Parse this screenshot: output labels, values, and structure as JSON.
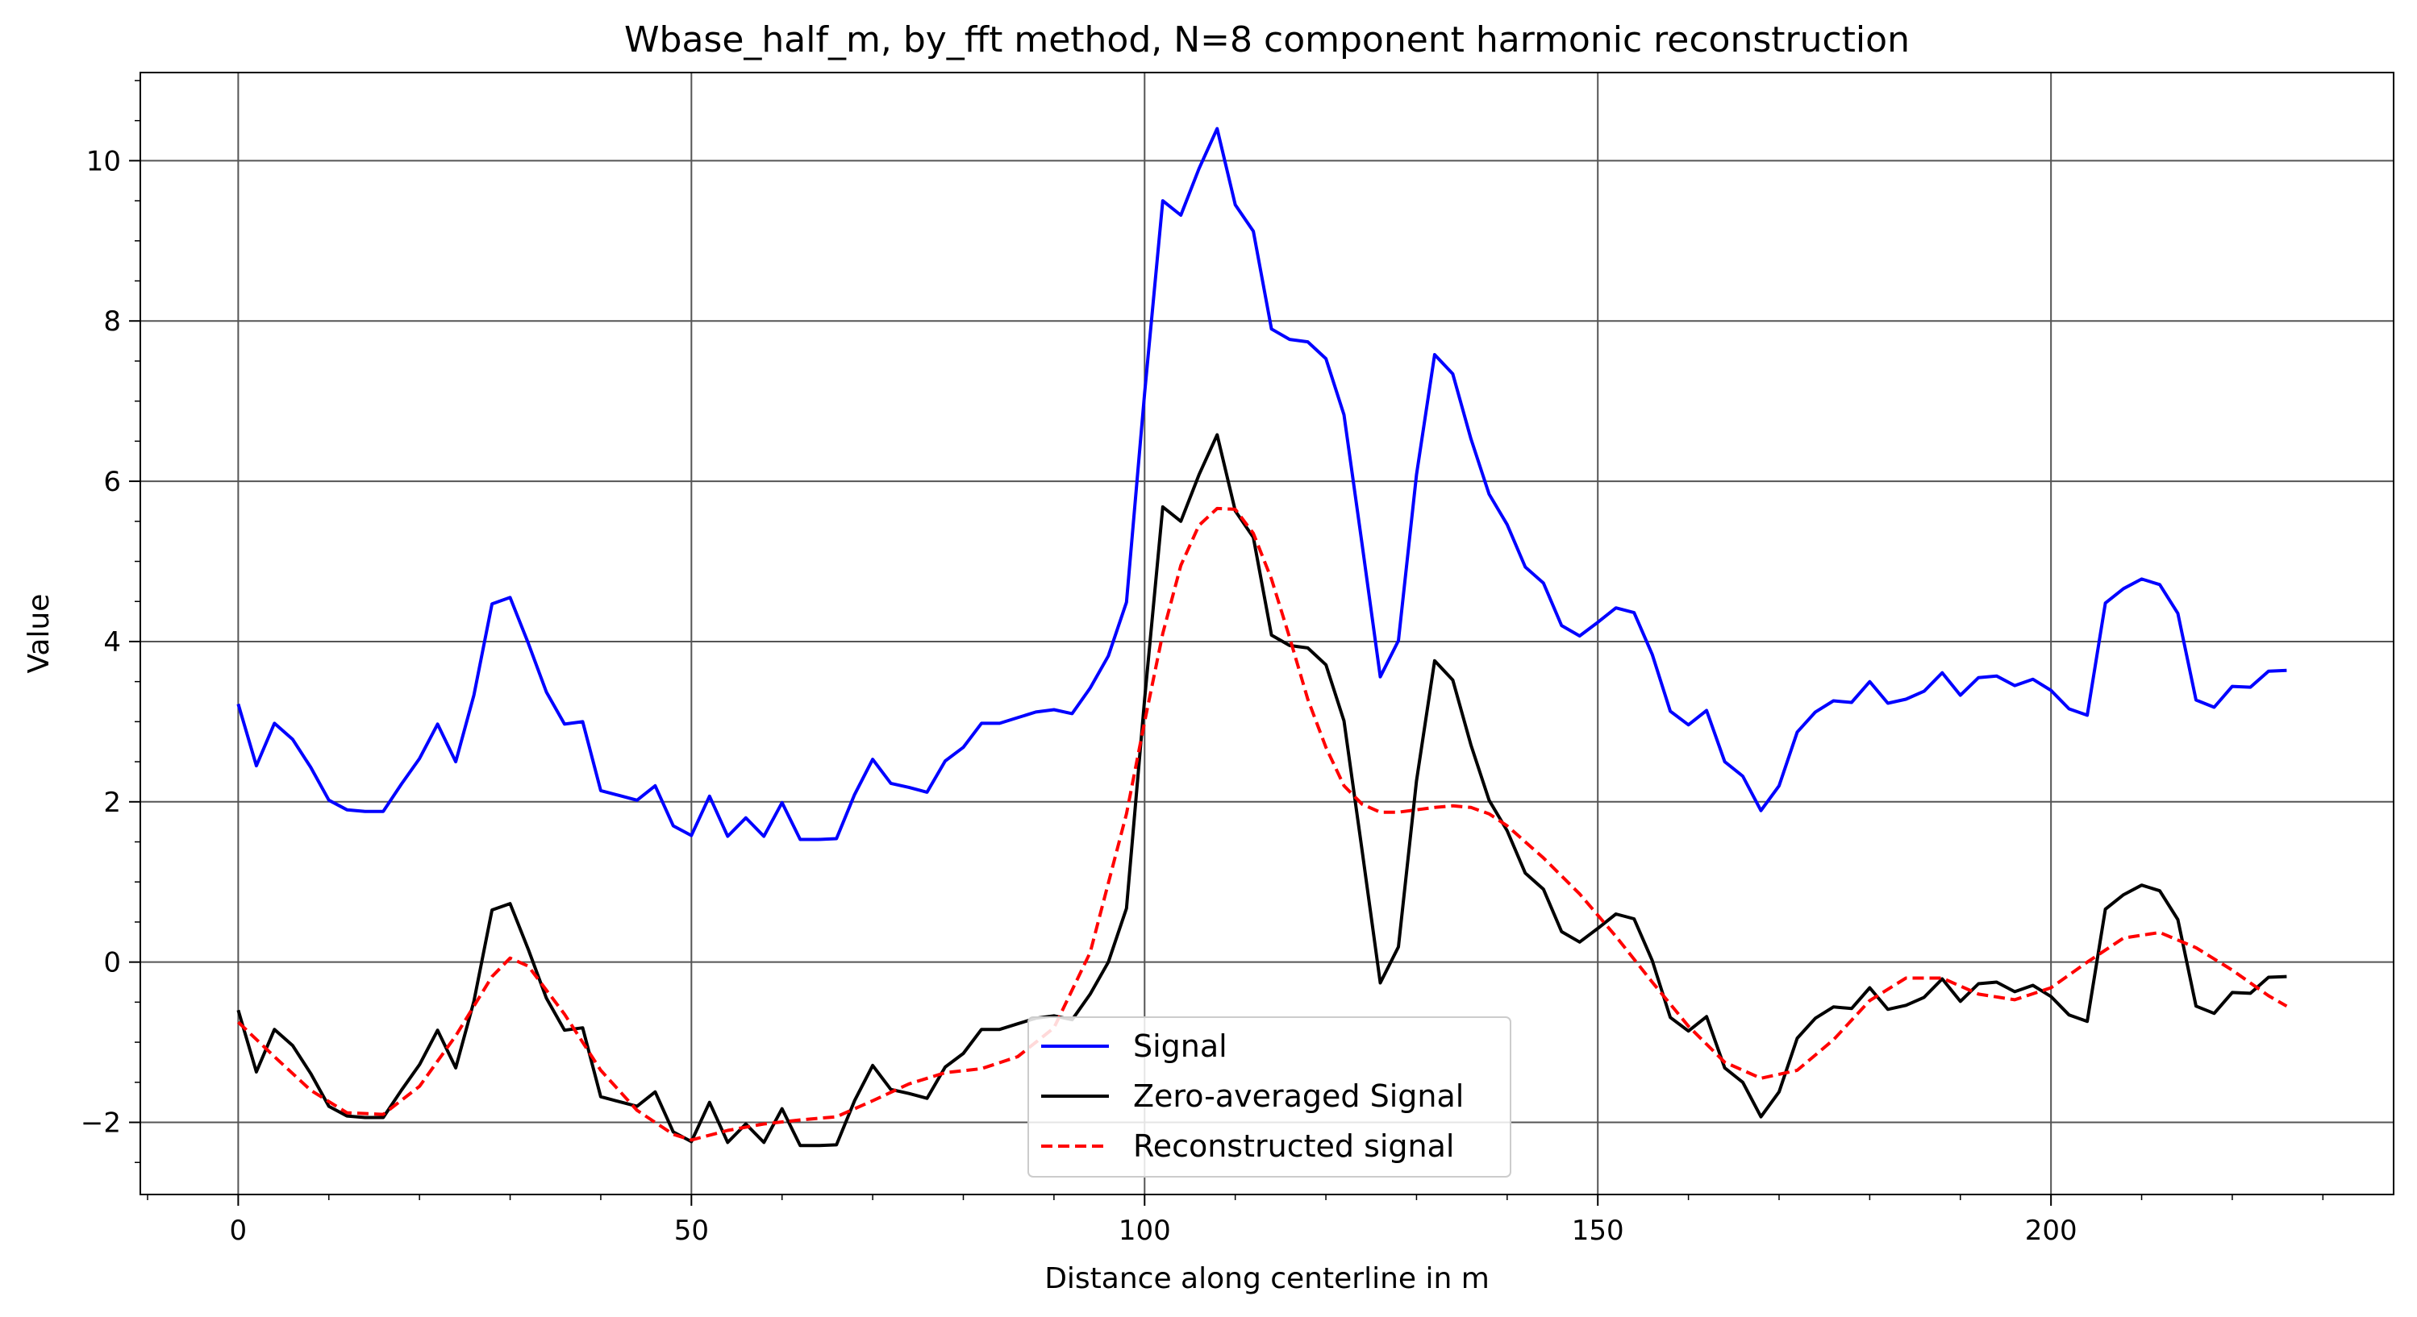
{
  "chart_data": {
    "type": "line",
    "title": "Wbase_half_m, by_fft method, N=8 component harmonic reconstruction",
    "xlabel": "Distance along centerline in m",
    "ylabel": "Value",
    "xlim": [
      -10.8,
      237.8
    ],
    "ylim": [
      -2.9,
      11.1
    ],
    "xticks": [
      0,
      50,
      100,
      150,
      200
    ],
    "yticks": [
      -2,
      0,
      2,
      4,
      6,
      8,
      10
    ],
    "xtick_labels": [
      "0",
      "50",
      "100",
      "150",
      "200"
    ],
    "ytick_labels": [
      "−2",
      "0",
      "2",
      "4",
      "6",
      "8",
      "10"
    ],
    "grid": true,
    "legend_position": "lower-center",
    "series": [
      {
        "name": "Signal",
        "color": "#0000ff",
        "style": "solid",
        "x": [
          0,
          2,
          4,
          6,
          8,
          10,
          12,
          14,
          16,
          18,
          20,
          22,
          24,
          26,
          28,
          30,
          32,
          34,
          36,
          38,
          40,
          42,
          44,
          46,
          48,
          50,
          52,
          54,
          56,
          58,
          60,
          62,
          64,
          66,
          68,
          70,
          72,
          74,
          76,
          78,
          80,
          82,
          84,
          86,
          88,
          90,
          92,
          94,
          96,
          98,
          100,
          102,
          104,
          106,
          108,
          110,
          112,
          114,
          116,
          118,
          120,
          122,
          124,
          126,
          128,
          130,
          132,
          134,
          136,
          138,
          140,
          142,
          144,
          146,
          148,
          150,
          152,
          154,
          156,
          158,
          160,
          162,
          164,
          166,
          168,
          170,
          172,
          174,
          176,
          178,
          180,
          182,
          184,
          186,
          188,
          190,
          192,
          194,
          196,
          198,
          200,
          202,
          204,
          206,
          208,
          210,
          212,
          214,
          216,
          218,
          220,
          222,
          224,
          226
        ],
        "y": [
          3.22,
          2.45,
          2.98,
          2.78,
          2.43,
          2.02,
          1.9,
          1.88,
          1.88,
          2.22,
          2.54,
          2.97,
          2.5,
          3.33,
          4.47,
          4.55,
          3.98,
          3.37,
          2.97,
          3.0,
          2.14,
          2.08,
          2.02,
          2.2,
          1.7,
          1.58,
          2.07,
          1.57,
          1.8,
          1.57,
          1.99,
          1.53,
          1.53,
          1.54,
          2.09,
          2.53,
          2.23,
          2.18,
          2.12,
          2.51,
          2.68,
          2.98,
          2.98,
          3.05,
          3.12,
          3.15,
          3.1,
          3.42,
          3.82,
          4.49,
          7.1,
          9.5,
          9.32,
          9.9,
          10.4,
          9.45,
          9.12,
          7.9,
          7.77,
          7.74,
          7.53,
          6.83,
          5.21,
          3.56,
          4.01,
          6.08,
          7.58,
          7.34,
          6.53,
          5.84,
          5.46,
          4.93,
          4.73,
          4.2,
          4.07,
          4.24,
          4.42,
          4.36,
          3.84,
          3.13,
          2.96,
          3.14,
          2.5,
          2.32,
          1.89,
          2.2,
          2.87,
          3.12,
          3.26,
          3.24,
          3.5,
          3.23,
          3.28,
          3.38,
          3.61,
          3.33,
          3.55,
          3.57,
          3.45,
          3.53,
          3.39,
          3.16,
          3.08,
          4.48,
          4.66,
          4.78,
          4.71,
          4.35,
          3.27,
          3.18,
          3.44,
          3.43,
          3.63,
          3.64
        ]
      },
      {
        "name": "Zero-averaged Signal",
        "color": "#000000",
        "style": "solid",
        "x": [
          0,
          2,
          4,
          6,
          8,
          10,
          12,
          14,
          16,
          18,
          20,
          22,
          24,
          26,
          28,
          30,
          32,
          34,
          36,
          38,
          40,
          42,
          44,
          46,
          48,
          50,
          52,
          54,
          56,
          58,
          60,
          62,
          64,
          66,
          68,
          70,
          72,
          74,
          76,
          78,
          80,
          82,
          84,
          86,
          88,
          90,
          92,
          94,
          96,
          98,
          100,
          102,
          104,
          106,
          108,
          110,
          112,
          114,
          116,
          118,
          120,
          122,
          124,
          126,
          128,
          130,
          132,
          134,
          136,
          138,
          140,
          142,
          144,
          146,
          148,
          150,
          152,
          154,
          156,
          158,
          160,
          162,
          164,
          166,
          168,
          170,
          172,
          174,
          176,
          178,
          180,
          182,
          184,
          186,
          188,
          190,
          192,
          194,
          196,
          198,
          200,
          202,
          204,
          206,
          208,
          210,
          212,
          214,
          216,
          218,
          220,
          222,
          224,
          226
        ],
        "y": [
          -0.6,
          -1.37,
          -0.84,
          -1.04,
          -1.39,
          -1.8,
          -1.92,
          -1.94,
          -1.94,
          -1.6,
          -1.28,
          -0.85,
          -1.32,
          -0.49,
          0.65,
          0.73,
          0.16,
          -0.45,
          -0.85,
          -0.82,
          -1.68,
          -1.74,
          -1.8,
          -1.62,
          -2.12,
          -2.24,
          -1.75,
          -2.25,
          -2.02,
          -2.25,
          -1.83,
          -2.29,
          -2.29,
          -2.28,
          -1.73,
          -1.29,
          -1.59,
          -1.64,
          -1.7,
          -1.31,
          -1.14,
          -0.84,
          -0.84,
          -0.77,
          -0.7,
          -0.67,
          -0.72,
          -0.4,
          0.0,
          0.67,
          3.28,
          5.68,
          5.5,
          6.08,
          6.58,
          5.63,
          5.3,
          4.08,
          3.95,
          3.92,
          3.71,
          3.01,
          1.39,
          -0.26,
          0.19,
          2.26,
          3.76,
          3.52,
          2.71,
          2.02,
          1.64,
          1.11,
          0.91,
          0.38,
          0.25,
          0.42,
          0.6,
          0.54,
          0.02,
          -0.69,
          -0.86,
          -0.68,
          -1.32,
          -1.5,
          -1.93,
          -1.62,
          -0.95,
          -0.7,
          -0.56,
          -0.58,
          -0.32,
          -0.59,
          -0.54,
          -0.44,
          -0.21,
          -0.49,
          -0.27,
          -0.25,
          -0.37,
          -0.29,
          -0.43,
          -0.66,
          -0.74,
          0.66,
          0.84,
          0.96,
          0.89,
          0.53,
          -0.55,
          -0.64,
          -0.38,
          -0.39,
          -0.19,
          -0.18
        ]
      },
      {
        "name": "Reconstructed signal",
        "color": "#ff0000",
        "style": "dashed",
        "x": [
          0,
          4,
          8,
          12,
          16,
          20,
          24,
          28,
          30,
          32,
          36,
          40,
          44,
          48,
          50,
          54,
          58,
          62,
          66,
          70,
          74,
          78,
          82,
          86,
          90,
          94,
          98,
          100,
          102,
          104,
          106,
          108,
          110,
          112,
          114,
          116,
          118,
          120,
          122,
          124,
          126,
          128,
          130,
          132,
          134,
          136,
          138,
          140,
          144,
          148,
          152,
          156,
          160,
          164,
          168,
          172,
          176,
          180,
          184,
          188,
          192,
          196,
          200,
          204,
          208,
          212,
          216,
          220,
          224,
          226
        ],
        "y": [
          -0.75,
          -1.18,
          -1.6,
          -1.88,
          -1.9,
          -1.55,
          -0.92,
          -0.18,
          0.05,
          -0.05,
          -0.65,
          -1.35,
          -1.85,
          -2.15,
          -2.22,
          -2.1,
          -2.02,
          -1.97,
          -1.93,
          -1.73,
          -1.52,
          -1.38,
          -1.33,
          -1.18,
          -0.82,
          0.12,
          1.85,
          3.0,
          4.1,
          4.95,
          5.45,
          5.66,
          5.65,
          5.35,
          4.78,
          4.05,
          3.28,
          2.68,
          2.2,
          1.97,
          1.87,
          1.87,
          1.9,
          1.93,
          1.95,
          1.93,
          1.85,
          1.7,
          1.3,
          0.85,
          0.32,
          -0.25,
          -0.8,
          -1.25,
          -1.45,
          -1.35,
          -0.97,
          -0.48,
          -0.2,
          -0.2,
          -0.4,
          -0.47,
          -0.32,
          0.0,
          0.3,
          0.37,
          0.18,
          -0.1,
          -0.42,
          -0.55
        ]
      }
    ]
  }
}
